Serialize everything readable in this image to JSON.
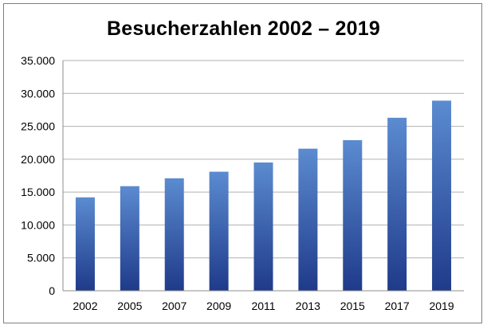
{
  "chart_data": {
    "type": "bar",
    "title": "Besucherzahlen 2002 – 2019",
    "xlabel": "",
    "ylabel": "",
    "categories": [
      "2002",
      "2005",
      "2007",
      "2009",
      "2011",
      "2013",
      "2015",
      "2017",
      "2019"
    ],
    "values": [
      14200,
      15900,
      17100,
      18100,
      19500,
      21600,
      22900,
      26300,
      28900
    ],
    "ylim": [
      0,
      35000
    ],
    "y_ticks": [
      0,
      5000,
      10000,
      15000,
      20000,
      25000,
      30000,
      35000
    ],
    "y_tick_labels": [
      "0",
      "5.000",
      "10.000",
      "15.000",
      "20.000",
      "25.000",
      "30.000",
      "35.000"
    ],
    "grid": true,
    "legend": "none",
    "colors": {
      "bar_top": "#5b8bd0",
      "bar_bottom": "#1f3a8a",
      "grid": "#b0b0b0",
      "axis": "#8c8c8c"
    }
  }
}
